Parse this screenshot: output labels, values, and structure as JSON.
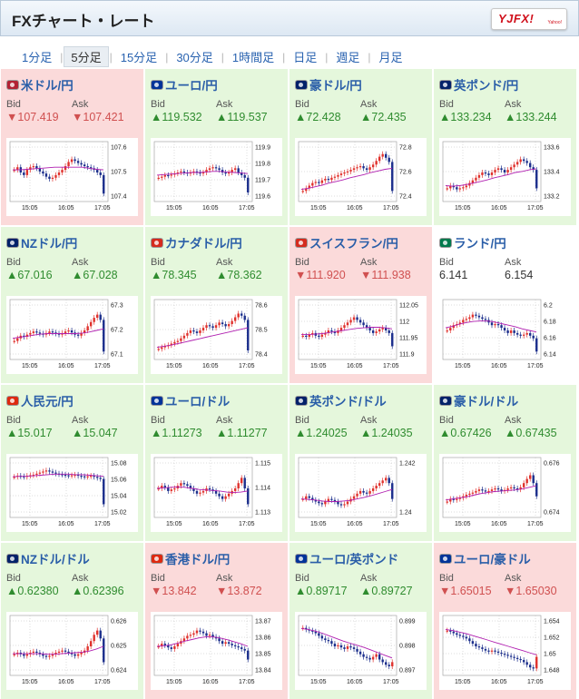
{
  "header": {
    "title": "FXチャート・レート",
    "logo_text": "YJFX!",
    "logo_sub": "Yahoo!"
  },
  "tabs": [
    {
      "label": "1分足",
      "active": false
    },
    {
      "label": "5分足",
      "active": true
    },
    {
      "label": "15分足",
      "active": false
    },
    {
      "label": "30分足",
      "active": false
    },
    {
      "label": "1時間足",
      "active": false
    },
    {
      "label": "日足",
      "active": false
    },
    {
      "label": "週足",
      "active": false
    },
    {
      "label": "月足",
      "active": false
    }
  ],
  "labels": {
    "bid": "Bid",
    "ask": "Ask",
    "up_arrow": "▲",
    "down_arrow": "▼"
  },
  "colors": {
    "up_bg": "#e5f7dc",
    "down_bg": "#fbdada",
    "up_text": "#2f8c2f",
    "down_text": "#d05050",
    "link": "#2a5ea8",
    "candle_up": "#e0322d",
    "candle_down": "#1b2e8c",
    "ma_line": "#b01fb0"
  },
  "pairs": [
    {
      "name": "米ドル/円",
      "flag": "us-jp-flag-icon",
      "dir": "down",
      "bid": "107.419",
      "ask": "107.421",
      "chart": {
        "yticks": [
          "107.6",
          "107.5",
          "107.4"
        ],
        "xticks": [
          "15:05",
          "16:05",
          "17:05"
        ],
        "trend": [
          0.55,
          0.6,
          0.5,
          0.45,
          0.55,
          0.6,
          0.62,
          0.58,
          0.52,
          0.48,
          0.42,
          0.38,
          0.4,
          0.45,
          0.5,
          0.55,
          0.62,
          0.7,
          0.75,
          0.72,
          0.68,
          0.65,
          0.62,
          0.6,
          0.58,
          0.55,
          0.5,
          0.45,
          0.1
        ],
        "ma": [
          0.55,
          0.55,
          0.56,
          0.57,
          0.58,
          0.59,
          0.6,
          0.6,
          0.6,
          0.6,
          0.6,
          0.58,
          0.56,
          0.55
        ]
      }
    },
    {
      "name": "ユーロ/円",
      "flag": "eu-jp-flag-icon",
      "dir": "up",
      "bid": "119.532",
      "ask": "119.537",
      "chart": {
        "yticks": [
          "119.9",
          "119.8",
          "119.7",
          "119.6"
        ],
        "xticks": [
          "15:05",
          "16:05",
          "17:05"
        ],
        "trend": [
          0.4,
          0.42,
          0.45,
          0.44,
          0.46,
          0.48,
          0.5,
          0.52,
          0.5,
          0.48,
          0.5,
          0.52,
          0.5,
          0.48,
          0.5,
          0.55,
          0.58,
          0.6,
          0.58,
          0.55,
          0.5,
          0.48,
          0.5,
          0.55,
          0.58,
          0.5,
          0.45,
          0.4,
          0.12
        ],
        "ma": [
          0.45,
          0.46,
          0.47,
          0.48,
          0.49,
          0.5,
          0.5,
          0.51,
          0.52,
          0.52,
          0.51,
          0.5,
          0.49,
          0.48
        ]
      }
    },
    {
      "name": "豪ドル/円",
      "flag": "au-jp-flag-icon",
      "dir": "up",
      "bid": "72.428",
      "ask": "72.435",
      "chart": {
        "yticks": [
          "72.8",
          "72.6",
          "72.4"
        ],
        "xticks": [
          "15:05",
          "16:05",
          "17:05"
        ],
        "trend": [
          0.15,
          0.2,
          0.25,
          0.3,
          0.32,
          0.3,
          0.35,
          0.38,
          0.36,
          0.4,
          0.42,
          0.45,
          0.48,
          0.5,
          0.52,
          0.55,
          0.58,
          0.6,
          0.62,
          0.58,
          0.55,
          0.6,
          0.65,
          0.72,
          0.8,
          0.85,
          0.78,
          0.7,
          0.15
        ],
        "ma": [
          0.18,
          0.2,
          0.23,
          0.26,
          0.3,
          0.33,
          0.36,
          0.4,
          0.43,
          0.46,
          0.5,
          0.53,
          0.56,
          0.58
        ]
      }
    },
    {
      "name": "英ポンド/円",
      "flag": "gb-jp-flag-icon",
      "dir": "up",
      "bid": "133.234",
      "ask": "133.244",
      "chart": {
        "yticks": [
          "133.6",
          "133.4",
          "133.2"
        ],
        "xticks": [
          "15:05",
          "16:05",
          "17:05"
        ],
        "trend": [
          0.2,
          0.25,
          0.22,
          0.18,
          0.2,
          0.22,
          0.25,
          0.3,
          0.35,
          0.4,
          0.45,
          0.5,
          0.48,
          0.45,
          0.5,
          0.55,
          0.58,
          0.55,
          0.5,
          0.55,
          0.6,
          0.65,
          0.7,
          0.75,
          0.72,
          0.68,
          0.6,
          0.55,
          0.2
        ],
        "ma": [
          0.25,
          0.24,
          0.25,
          0.27,
          0.3,
          0.33,
          0.36,
          0.4,
          0.43,
          0.46,
          0.5,
          0.52,
          0.55,
          0.57
        ]
      }
    },
    {
      "name": "NZドル/円",
      "flag": "nz-jp-flag-icon",
      "dir": "up",
      "bid": "67.016",
      "ask": "67.028",
      "chart": {
        "yticks": [
          "67.3",
          "67.2",
          "67.1"
        ],
        "xticks": [
          "15:05",
          "16:05",
          "17:05"
        ],
        "trend": [
          0.3,
          0.35,
          0.4,
          0.38,
          0.42,
          0.45,
          0.48,
          0.46,
          0.44,
          0.42,
          0.45,
          0.48,
          0.46,
          0.44,
          0.42,
          0.45,
          0.48,
          0.5,
          0.46,
          0.42,
          0.4,
          0.45,
          0.5,
          0.58,
          0.66,
          0.74,
          0.8,
          0.7,
          0.1
        ],
        "ma": [
          0.35,
          0.37,
          0.39,
          0.41,
          0.43,
          0.44,
          0.44,
          0.44,
          0.44,
          0.44,
          0.45,
          0.47,
          0.5,
          0.53
        ]
      }
    },
    {
      "name": "カナダドル/円",
      "flag": "ca-jp-flag-icon",
      "dir": "up",
      "bid": "78.345",
      "ask": "78.362",
      "chart": {
        "yticks": [
          "78.6",
          "78.5",
          "78.4"
        ],
        "xticks": [
          "15:05",
          "16:05",
          "17:05"
        ],
        "trend": [
          0.15,
          0.18,
          0.2,
          0.22,
          0.25,
          0.28,
          0.3,
          0.35,
          0.4,
          0.45,
          0.5,
          0.48,
          0.45,
          0.5,
          0.55,
          0.6,
          0.58,
          0.55,
          0.6,
          0.65,
          0.62,
          0.58,
          0.62,
          0.68,
          0.75,
          0.82,
          0.78,
          0.7,
          0.12
        ],
        "ma": [
          0.18,
          0.2,
          0.22,
          0.25,
          0.28,
          0.31,
          0.34,
          0.37,
          0.4,
          0.43,
          0.46,
          0.49,
          0.52,
          0.55
        ]
      }
    },
    {
      "name": "スイスフラン/円",
      "flag": "ch-jp-flag-icon",
      "dir": "down",
      "bid": "111.920",
      "ask": "111.938",
      "chart": {
        "yticks": [
          "112.05",
          "112",
          "111.95",
          "111.9"
        ],
        "xticks": [
          "15:05",
          "16:05",
          "17:05"
        ],
        "trend": [
          0.4,
          0.38,
          0.42,
          0.45,
          0.4,
          0.38,
          0.42,
          0.45,
          0.5,
          0.48,
          0.45,
          0.5,
          0.55,
          0.6,
          0.65,
          0.7,
          0.75,
          0.7,
          0.65,
          0.6,
          0.55,
          0.5,
          0.45,
          0.48,
          0.52,
          0.55,
          0.5,
          0.45,
          0.2
        ],
        "ma": [
          0.42,
          0.42,
          0.43,
          0.44,
          0.46,
          0.48,
          0.5,
          0.52,
          0.54,
          0.55,
          0.56,
          0.56,
          0.55,
          0.53
        ]
      }
    },
    {
      "name": "ランド/円",
      "flag": "za-jp-flag-icon",
      "dir": "flat",
      "bid": "6.141",
      "ask": "6.154",
      "chart": {
        "yticks": [
          "6.2",
          "6.18",
          "6.16",
          "6.14"
        ],
        "xticks": [
          "15:05",
          "16:05",
          "17:05"
        ],
        "trend": [
          0.5,
          0.55,
          0.6,
          0.62,
          0.65,
          0.7,
          0.72,
          0.75,
          0.8,
          0.78,
          0.75,
          0.72,
          0.7,
          0.65,
          0.6,
          0.62,
          0.6,
          0.55,
          0.5,
          0.45,
          0.5,
          0.45,
          0.42,
          0.4,
          0.42,
          0.45,
          0.4,
          0.35,
          0.1
        ],
        "ma": [
          0.55,
          0.58,
          0.62,
          0.65,
          0.67,
          0.68,
          0.68,
          0.66,
          0.63,
          0.6,
          0.57,
          0.53,
          0.5,
          0.47
        ]
      }
    },
    {
      "name": "人民元/円",
      "flag": "cn-jp-flag-icon",
      "dir": "up",
      "bid": "15.017",
      "ask": "15.047",
      "chart": {
        "yticks": [
          "15.08",
          "15.06",
          "15.04",
          "15.02"
        ],
        "xticks": [
          "15:05",
          "16:05",
          "17:05"
        ],
        "trend": [
          0.72,
          0.74,
          0.73,
          0.72,
          0.74,
          0.75,
          0.76,
          0.78,
          0.8,
          0.82,
          0.84,
          0.82,
          0.8,
          0.78,
          0.77,
          0.76,
          0.75,
          0.74,
          0.75,
          0.76,
          0.74,
          0.73,
          0.72,
          0.73,
          0.74,
          0.72,
          0.7,
          0.68,
          0.2
        ],
        "ma": [
          0.72,
          0.73,
          0.73,
          0.74,
          0.75,
          0.76,
          0.77,
          0.77,
          0.77,
          0.76,
          0.76,
          0.75,
          0.74,
          0.73
        ]
      }
    },
    {
      "name": "ユーロ/ドル",
      "flag": "eu-us-flag-icon",
      "dir": "up",
      "bid": "1.11273",
      "ask": "1.11277",
      "chart": {
        "yticks": [
          "1.115",
          "1.114",
          "1.113"
        ],
        "xticks": [
          "15:05",
          "16:05",
          "17:05"
        ],
        "trend": [
          0.5,
          0.55,
          0.52,
          0.45,
          0.48,
          0.5,
          0.55,
          0.6,
          0.58,
          0.55,
          0.5,
          0.45,
          0.4,
          0.42,
          0.45,
          0.5,
          0.48,
          0.45,
          0.4,
          0.35,
          0.3,
          0.35,
          0.4,
          0.45,
          0.5,
          0.6,
          0.7,
          0.5,
          0.2
        ],
        "ma": [
          0.5,
          0.51,
          0.52,
          0.53,
          0.52,
          0.5,
          0.48,
          0.47,
          0.46,
          0.45,
          0.43,
          0.42,
          0.43,
          0.45
        ]
      }
    },
    {
      "name": "英ポンド/ドル",
      "flag": "gb-us-flag-icon",
      "dir": "up",
      "bid": "1.24025",
      "ask": "1.24035",
      "chart": {
        "yticks": [
          "1.242",
          "1.24"
        ],
        "xticks": [
          "15:05",
          "16:05",
          "17:05"
        ],
        "trend": [
          0.3,
          0.35,
          0.32,
          0.28,
          0.25,
          0.22,
          0.2,
          0.25,
          0.3,
          0.28,
          0.25,
          0.2,
          0.18,
          0.2,
          0.25,
          0.3,
          0.35,
          0.4,
          0.45,
          0.42,
          0.4,
          0.45,
          0.5,
          0.55,
          0.6,
          0.65,
          0.7,
          0.6,
          0.3
        ],
        "ma": [
          0.3,
          0.29,
          0.28,
          0.26,
          0.25,
          0.25,
          0.26,
          0.27,
          0.3,
          0.33,
          0.36,
          0.4,
          0.44,
          0.48
        ]
      }
    },
    {
      "name": "豪ドル/ドル",
      "flag": "au-us-flag-icon",
      "dir": "up",
      "bid": "0.67426",
      "ask": "0.67435",
      "chart": {
        "yticks": [
          "0.676",
          "0.674"
        ],
        "xticks": [
          "15:05",
          "16:05",
          "17:05"
        ],
        "trend": [
          0.25,
          0.3,
          0.28,
          0.3,
          0.32,
          0.35,
          0.38,
          0.4,
          0.42,
          0.45,
          0.48,
          0.46,
          0.44,
          0.45,
          0.48,
          0.5,
          0.48,
          0.45,
          0.47,
          0.5,
          0.52,
          0.5,
          0.48,
          0.52,
          0.6,
          0.68,
          0.75,
          0.6,
          0.35
        ],
        "ma": [
          0.28,
          0.3,
          0.32,
          0.34,
          0.37,
          0.4,
          0.42,
          0.44,
          0.45,
          0.46,
          0.47,
          0.49,
          0.52,
          0.55
        ]
      }
    },
    {
      "name": "NZドル/ドル",
      "flag": "nz-us-flag-icon",
      "dir": "up",
      "bid": "0.62380",
      "ask": "0.62396",
      "chart": {
        "yticks": [
          "0.626",
          "0.625",
          "0.624"
        ],
        "xticks": [
          "15:05",
          "16:05",
          "17:05"
        ],
        "trend": [
          0.35,
          0.38,
          0.35,
          0.32,
          0.35,
          0.38,
          0.4,
          0.38,
          0.35,
          0.32,
          0.3,
          0.32,
          0.35,
          0.38,
          0.4,
          0.42,
          0.4,
          0.38,
          0.35,
          0.32,
          0.35,
          0.38,
          0.42,
          0.5,
          0.6,
          0.72,
          0.8,
          0.65,
          0.2
        ],
        "ma": [
          0.36,
          0.36,
          0.36,
          0.36,
          0.36,
          0.35,
          0.35,
          0.36,
          0.37,
          0.38,
          0.39,
          0.41,
          0.45,
          0.5
        ]
      }
    },
    {
      "name": "香港ドル/円",
      "flag": "hk-jp-flag-icon",
      "dir": "down",
      "bid": "13.842",
      "ask": "13.872",
      "chart": {
        "yticks": [
          "13.87",
          "13.86",
          "13.85",
          "13.84"
        ],
        "xticks": [
          "15:05",
          "16:05",
          "17:05"
        ],
        "trend": [
          0.5,
          0.55,
          0.52,
          0.48,
          0.45,
          0.5,
          0.55,
          0.6,
          0.65,
          0.7,
          0.72,
          0.75,
          0.8,
          0.78,
          0.75,
          0.7,
          0.72,
          0.68,
          0.65,
          0.6,
          0.55,
          0.58,
          0.55,
          0.52,
          0.5,
          0.48,
          0.45,
          0.42,
          0.25
        ],
        "ma": [
          0.5,
          0.51,
          0.53,
          0.56,
          0.6,
          0.63,
          0.66,
          0.68,
          0.68,
          0.66,
          0.63,
          0.59,
          0.55,
          0.5
        ]
      }
    },
    {
      "name": "ユーロ/英ポンド",
      "flag": "eu-gb-flag-icon",
      "dir": "up",
      "bid": "0.89717",
      "ask": "0.89727",
      "chart": {
        "yticks": [
          "0.899",
          "0.898",
          "0.897"
        ],
        "xticks": [
          "15:05",
          "16:05",
          "17:05"
        ],
        "trend": [
          0.85,
          0.82,
          0.8,
          0.78,
          0.75,
          0.7,
          0.65,
          0.62,
          0.6,
          0.55,
          0.5,
          0.52,
          0.48,
          0.45,
          0.5,
          0.48,
          0.45,
          0.4,
          0.35,
          0.3,
          0.28,
          0.25,
          0.3,
          0.35,
          0.25,
          0.2,
          0.15,
          0.12,
          0.2
        ],
        "ma": [
          0.84,
          0.82,
          0.79,
          0.75,
          0.7,
          0.65,
          0.6,
          0.56,
          0.52,
          0.48,
          0.43,
          0.38,
          0.33,
          0.28
        ]
      }
    },
    {
      "name": "ユーロ/豪ドル",
      "flag": "eu-au-flag-icon",
      "dir": "down",
      "bid": "1.65015",
      "ask": "1.65030",
      "chart": {
        "yticks": [
          "1.654",
          "1.652",
          "1.65",
          "1.648"
        ],
        "xticks": [
          "15:05",
          "16:05",
          "17:05"
        ],
        "trend": [
          0.8,
          0.78,
          0.75,
          0.72,
          0.7,
          0.68,
          0.65,
          0.6,
          0.55,
          0.5,
          0.48,
          0.45,
          0.42,
          0.4,
          0.42,
          0.4,
          0.38,
          0.36,
          0.34,
          0.32,
          0.3,
          0.28,
          0.26,
          0.24,
          0.2,
          0.15,
          0.1,
          0.08,
          0.3
        ],
        "ma": [
          0.82,
          0.8,
          0.77,
          0.74,
          0.7,
          0.66,
          0.62,
          0.58,
          0.54,
          0.5,
          0.46,
          0.42,
          0.38,
          0.34
        ]
      }
    }
  ]
}
